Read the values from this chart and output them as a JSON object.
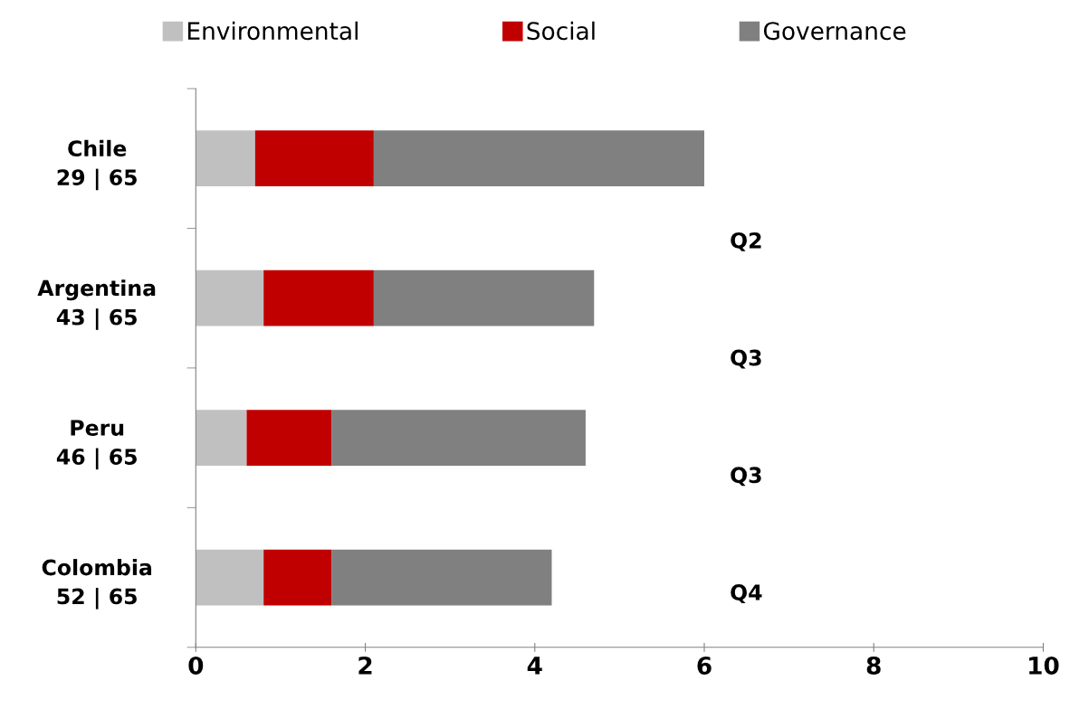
{
  "chart_data": {
    "type": "bar",
    "orientation": "horizontal",
    "stacked": true,
    "categories": [
      "Chile\n29 | 65",
      "Argentina\n43 | 65",
      "Peru\n46 | 65",
      "Colombia\n52 | 65"
    ],
    "series": [
      {
        "name": "Environmental",
        "color": "#c0c0c0",
        "values": [
          0.7,
          0.8,
          0.6,
          0.8
        ]
      },
      {
        "name": "Social",
        "color": "#c00000",
        "values": [
          1.4,
          1.3,
          1.0,
          0.8
        ]
      },
      {
        "name": "Governance",
        "color": "#808080",
        "values": [
          3.9,
          2.6,
          3.0,
          2.6
        ]
      }
    ],
    "xlim": [
      0,
      10
    ],
    "xticks": [
      0,
      2,
      4,
      6,
      8,
      10
    ],
    "annotations": [
      "Q2",
      "Q3",
      "Q3",
      "Q4"
    ],
    "legend": "top",
    "grid": false
  }
}
